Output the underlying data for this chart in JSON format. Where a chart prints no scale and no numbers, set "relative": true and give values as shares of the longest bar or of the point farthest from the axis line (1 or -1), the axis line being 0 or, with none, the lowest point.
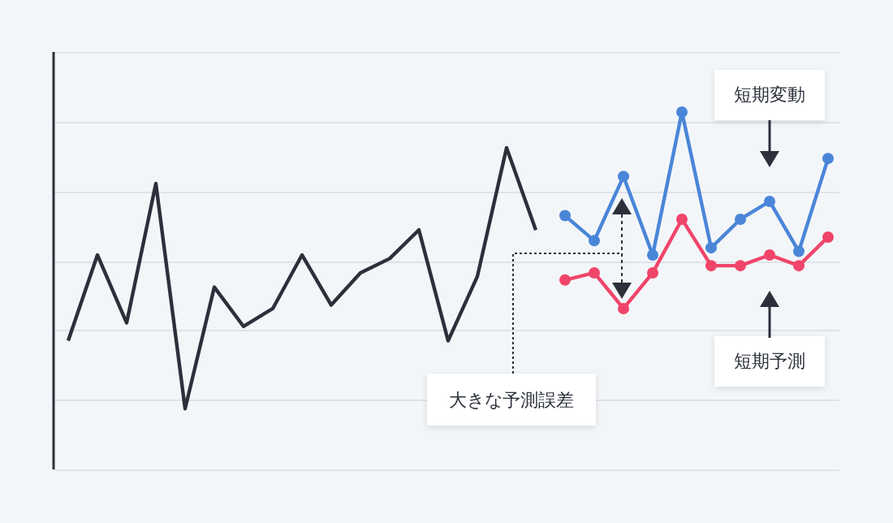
{
  "chart_data": {
    "type": "line",
    "relative": true,
    "grid": "y",
    "legend": false,
    "line_style": "solid",
    "categories": [
      null,
      null,
      null,
      null,
      null,
      null,
      null,
      null,
      null,
      null,
      null,
      null,
      null,
      null,
      null,
      null,
      null,
      null,
      null,
      null,
      null,
      null,
      null,
      null,
      null,
      null,
      null
    ],
    "series": [
      {
        "color": "#2b303b",
        "marker": "none",
        "values": [
          0.36,
          0.6,
          0.41,
          0.8,
          0.17,
          0.51,
          0.4,
          0.45,
          0.6,
          0.46,
          0.55,
          0.59,
          0.67,
          0.36,
          0.54,
          0.9,
          0.67,
          null,
          null,
          null,
          null,
          null,
          null,
          null,
          null,
          null,
          null
        ]
      },
      {
        "color": "#4a86d8",
        "marker": "circle",
        "values": [
          null,
          null,
          null,
          null,
          null,
          null,
          null,
          null,
          null,
          null,
          null,
          null,
          null,
          null,
          null,
          null,
          null,
          0.71,
          0.64,
          0.82,
          0.6,
          1.0,
          0.62,
          0.7,
          0.75,
          0.61,
          0.87
        ]
      },
      {
        "color": "#f0456a",
        "marker": "circle",
        "values": [
          null,
          null,
          null,
          null,
          null,
          null,
          null,
          null,
          null,
          null,
          null,
          null,
          null,
          null,
          null,
          null,
          null,
          0.53,
          0.55,
          0.45,
          0.55,
          0.7,
          0.57,
          0.57,
          0.6,
          0.57,
          0.65
        ]
      }
    ],
    "annotations": [
      "短期変動",
      "短期予測",
      "大きな予測誤差"
    ]
  }
}
